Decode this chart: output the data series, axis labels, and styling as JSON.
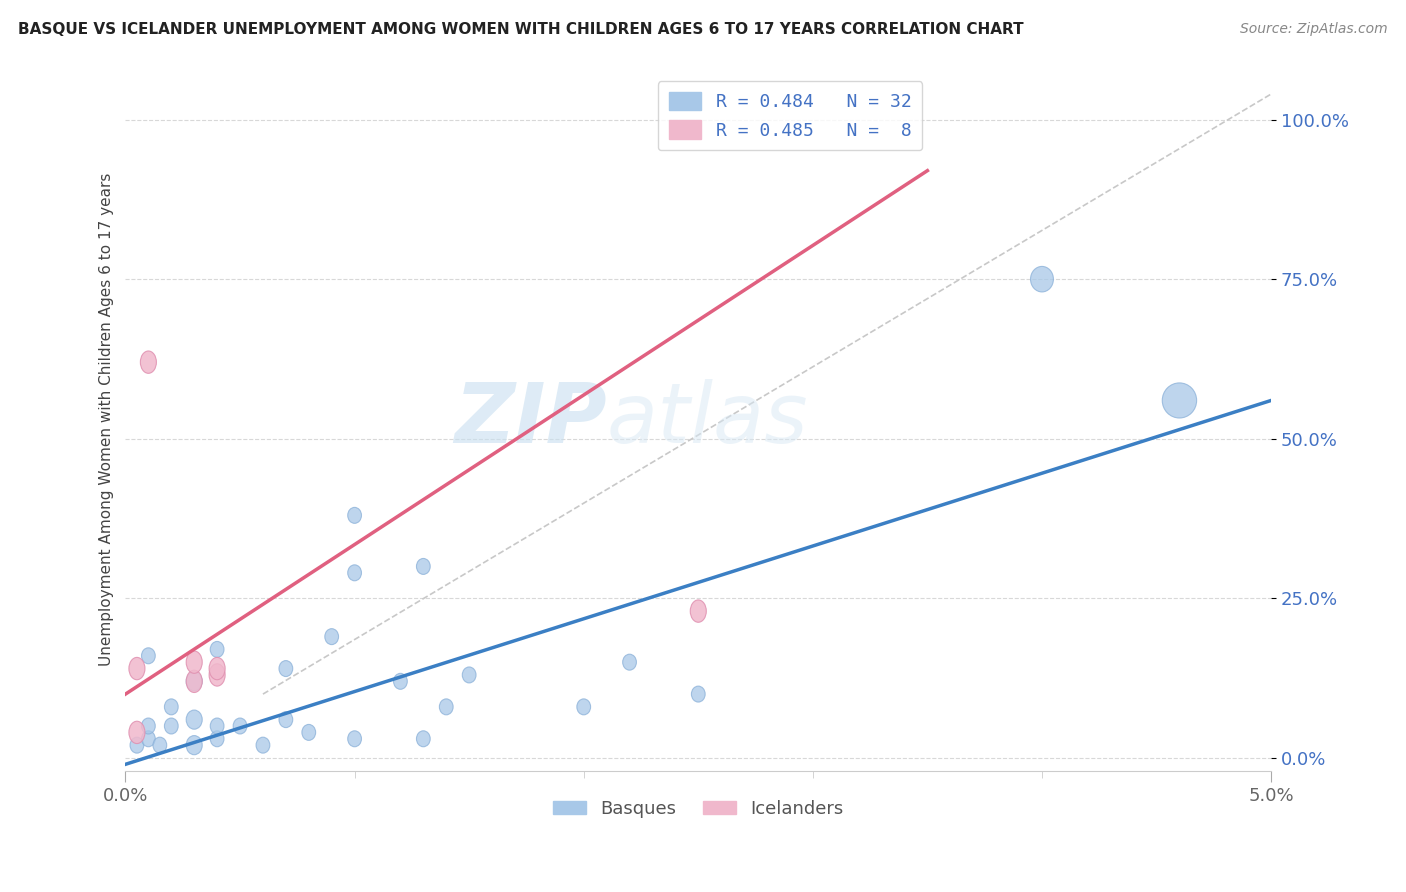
{
  "title": "BASQUE VS ICELANDER UNEMPLOYMENT AMONG WOMEN WITH CHILDREN AGES 6 TO 17 YEARS CORRELATION CHART",
  "source": "Source: ZipAtlas.com",
  "ylabel": "Unemployment Among Women with Children Ages 6 to 17 years",
  "yticks": [
    "0.0%",
    "25.0%",
    "50.0%",
    "75.0%",
    "100.0%"
  ],
  "ytick_vals": [
    0.0,
    0.25,
    0.5,
    0.75,
    1.0
  ],
  "xlim": [
    0.0,
    0.05
  ],
  "ylim": [
    -0.02,
    1.08
  ],
  "watermark_zip": "ZIP",
  "watermark_atlas": "atlas",
  "legend_blue_label": "R = 0.484   N = 32",
  "legend_pink_label": "R = 0.485   N =  8",
  "legend_bottom_blue": "Basques",
  "legend_bottom_pink": "Icelanders",
  "blue_color": "#a8c8e8",
  "pink_color": "#f0b8cc",
  "blue_line_color": "#3b7fc4",
  "pink_line_color": "#e06080",
  "dashed_line_color": "#c8c8c8",
  "background_color": "#ffffff",
  "grid_color": "#d8d8d8",
  "basque_x": [
    0.0005,
    0.001,
    0.001,
    0.001,
    0.0015,
    0.002,
    0.002,
    0.003,
    0.003,
    0.003,
    0.004,
    0.004,
    0.004,
    0.005,
    0.006,
    0.007,
    0.007,
    0.008,
    0.009,
    0.01,
    0.01,
    0.01,
    0.012,
    0.013,
    0.013,
    0.014,
    0.015,
    0.02,
    0.022,
    0.025,
    0.04,
    0.046
  ],
  "basque_y": [
    0.02,
    0.03,
    0.05,
    0.16,
    0.02,
    0.05,
    0.08,
    0.02,
    0.06,
    0.12,
    0.03,
    0.05,
    0.17,
    0.05,
    0.02,
    0.06,
    0.14,
    0.04,
    0.19,
    0.03,
    0.29,
    0.38,
    0.12,
    0.03,
    0.3,
    0.08,
    0.13,
    0.08,
    0.15,
    0.1,
    0.75,
    0.56
  ],
  "basque_sizes_w": [
    0.0006,
    0.0006,
    0.0006,
    0.0006,
    0.0006,
    0.0006,
    0.0006,
    0.0007,
    0.0007,
    0.0007,
    0.0006,
    0.0006,
    0.0006,
    0.0006,
    0.0006,
    0.0006,
    0.0006,
    0.0006,
    0.0006,
    0.0006,
    0.0006,
    0.0006,
    0.0006,
    0.0006,
    0.0006,
    0.0006,
    0.0006,
    0.0006,
    0.0006,
    0.0006,
    0.001,
    0.0015
  ],
  "basque_sizes_h": [
    0.025,
    0.025,
    0.025,
    0.025,
    0.025,
    0.025,
    0.025,
    0.03,
    0.03,
    0.03,
    0.025,
    0.025,
    0.025,
    0.025,
    0.025,
    0.025,
    0.025,
    0.025,
    0.025,
    0.025,
    0.025,
    0.025,
    0.025,
    0.025,
    0.025,
    0.025,
    0.025,
    0.025,
    0.025,
    0.025,
    0.04,
    0.055
  ],
  "icelander_x": [
    0.0005,
    0.0005,
    0.001,
    0.003,
    0.003,
    0.004,
    0.004,
    0.025
  ],
  "icelander_y": [
    0.04,
    0.14,
    0.62,
    0.12,
    0.15,
    0.13,
    0.14,
    0.23
  ],
  "icelander_sizes_w": [
    0.0007,
    0.0007,
    0.0007,
    0.0007,
    0.0007,
    0.0007,
    0.0007,
    0.0007
  ],
  "icelander_sizes_h": [
    0.035,
    0.035,
    0.035,
    0.035,
    0.035,
    0.035,
    0.035,
    0.035
  ],
  "blue_line_x0": 0.0,
  "blue_line_y0": -0.01,
  "blue_line_x1": 0.05,
  "blue_line_y1": 0.56,
  "pink_line_x0": 0.0,
  "pink_line_y0": 0.1,
  "pink_line_x1": 0.035,
  "pink_line_y1": 0.92,
  "ref_line_x0": 0.006,
  "ref_line_y0": 0.1,
  "ref_line_x1": 0.05,
  "ref_line_y1": 1.04
}
